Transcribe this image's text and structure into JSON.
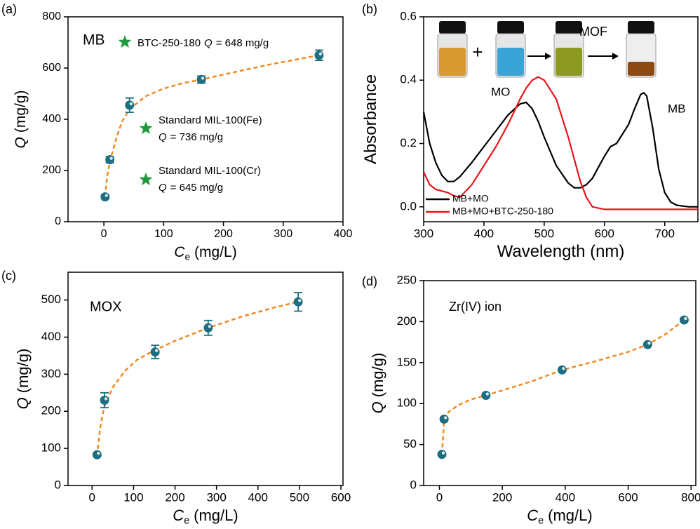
{
  "chart_data": [
    {
      "type": "scatter",
      "panel_label": "(a)",
      "annotation": "MB",
      "xlabel": {
        "symbol": "C",
        "subscript": "e",
        "unit": "(mg/L)"
      },
      "ylabel": {
        "symbol": "Q",
        "unit": "(mg/g)"
      },
      "xlim": [
        -60,
        400
      ],
      "ylim": [
        0,
        800
      ],
      "xticks": [
        0,
        100,
        200,
        300,
        400
      ],
      "yticks": [
        0,
        200,
        400,
        600,
        800
      ],
      "points": {
        "color": "#1c6e80",
        "x": [
          2,
          10,
          43,
          163,
          360
        ],
        "values": [
          97,
          242,
          455,
          555,
          650
        ],
        "errors": [
          8,
          12,
          28,
          14,
          20
        ]
      },
      "fit": {
        "color": "#f08a24",
        "x": [
          2,
          5,
          10,
          20,
          30,
          43,
          70,
          100,
          130,
          163,
          220,
          280,
          360
        ],
        "values": [
          97,
          170,
          235,
          320,
          390,
          440,
          490,
          520,
          540,
          555,
          585,
          615,
          650
        ]
      },
      "stars": [
        {
          "color": "#1f9a3c",
          "lines": [
            [
              {
                "text": "BTC-250-180"
              },
              {
                "text": "Q",
                "italic": true
              },
              {
                "text": "= 648 mg/g"
              }
            ]
          ]
        },
        {
          "color": "#1f9a3c",
          "lines": [
            [
              {
                "text": "Standard MIL-100(Fe)"
              }
            ],
            [
              {
                "text": "Q",
                "italic": true
              },
              {
                "text": "= 736 mg/g"
              }
            ]
          ]
        },
        {
          "color": "#1f9a3c",
          "lines": [
            [
              {
                "text": "Standard MIL-100(Cr)"
              }
            ],
            [
              {
                "text": "Q",
                "italic": true
              },
              {
                "text": "= 645 mg/g"
              }
            ]
          ]
        }
      ]
    },
    {
      "type": "line",
      "panel_label": "(b)",
      "xlabel": {
        "text": "Wavelength (nm)"
      },
      "ylabel": {
        "text": "Absorbance"
      },
      "xlim": [
        300,
        755
      ],
      "ylim": [
        -0.047,
        0.6
      ],
      "xticks": [
        300,
        400,
        500,
        600,
        700
      ],
      "yticks": [
        {
          "value": 0,
          "label": "0.0"
        },
        {
          "value": 0.2,
          "label": "0.2"
        },
        {
          "value": 0.4,
          "label": "0.4"
        },
        {
          "value": 0.6,
          "label": "0.6"
        }
      ],
      "legend": "lower left",
      "annotations": [
        "MO",
        "MB"
      ],
      "inset_labels": [
        "+",
        "MOF"
      ],
      "x": [
        300,
        310,
        320,
        330,
        340,
        350,
        360,
        380,
        400,
        420,
        440,
        460,
        470,
        480,
        490,
        500,
        520,
        540,
        550,
        560,
        570,
        580,
        600,
        610,
        620,
        640,
        650,
        660,
        665,
        670,
        680,
        690,
        700,
        710,
        720,
        740,
        755
      ],
      "series": [
        {
          "name": "MB+MO",
          "color": "#000000",
          "values": [
            0.3,
            0.2,
            0.14,
            0.1,
            0.08,
            0.08,
            0.095,
            0.14,
            0.19,
            0.24,
            0.29,
            0.325,
            0.33,
            0.31,
            0.27,
            0.22,
            0.13,
            0.075,
            0.06,
            0.06,
            0.07,
            0.09,
            0.16,
            0.19,
            0.2,
            0.26,
            0.31,
            0.355,
            0.36,
            0.35,
            0.25,
            0.12,
            0.045,
            0.015,
            0.005,
            0.0,
            0.0
          ]
        },
        {
          "name": "MB+MO+BTC-250-180",
          "color": "#e8141a",
          "values": [
            0.11,
            0.07,
            0.055,
            0.05,
            0.045,
            0.035,
            0.03,
            0.07,
            0.13,
            0.19,
            0.26,
            0.34,
            0.375,
            0.4,
            0.41,
            0.4,
            0.34,
            0.22,
            0.15,
            0.08,
            0.03,
            0.0,
            -0.008,
            -0.008,
            -0.008,
            -0.008,
            -0.008,
            -0.008,
            -0.008,
            -0.008,
            -0.008,
            -0.008,
            -0.008,
            -0.008,
            -0.008,
            -0.008,
            -0.008
          ]
        }
      ]
    },
    {
      "type": "scatter",
      "panel_label": "(c)",
      "annotation": "MOX",
      "xlabel": {
        "symbol": "C",
        "subscript": "e",
        "unit": "(mg/L)"
      },
      "ylabel": {
        "symbol": "Q",
        "unit": "(mg/g)"
      },
      "xlim": [
        -58,
        605
      ],
      "ylim": [
        0,
        575
      ],
      "xticks": [
        0,
        100,
        200,
        300,
        400,
        500,
        600
      ],
      "yticks": [
        0,
        100,
        200,
        300,
        400,
        500
      ],
      "points": {
        "color": "#1c6e80",
        "x": [
          12,
          30,
          152,
          280,
          497
        ],
        "values": [
          83,
          230,
          360,
          425,
          495
        ],
        "errors": [
          5,
          20,
          18,
          20,
          25
        ]
      },
      "fit": {
        "color": "#f08a24",
        "x": [
          12,
          20,
          30,
          50,
          80,
          110,
          152,
          200,
          280,
          360,
          440,
          497
        ],
        "values": [
          80,
          160,
          215,
          265,
          310,
          340,
          365,
          390,
          425,
          455,
          480,
          495
        ]
      }
    },
    {
      "type": "scatter",
      "panel_label": "(d)",
      "annotation": "Zr(IV) ion",
      "xlabel": {
        "symbol": "C",
        "subscript": "e",
        "unit": "(mg/L)"
      },
      "ylabel": {
        "symbol": "Q",
        "unit": "(mg/g)"
      },
      "xlim": [
        -50,
        815
      ],
      "ylim": [
        0,
        250
      ],
      "xticks": [
        0,
        200,
        400,
        600,
        800
      ],
      "yticks": [
        0,
        50,
        100,
        150,
        200,
        250
      ],
      "points": {
        "color": "#1c6e80",
        "x": [
          8,
          15,
          148,
          390,
          662,
          778
        ],
        "values": [
          38,
          81,
          110,
          141,
          172,
          202
        ]
      },
      "fit": {
        "color": "#f08a24",
        "x": [
          8,
          12,
          15,
          30,
          60,
          100,
          148,
          200,
          300,
          390,
          500,
          600,
          662,
          720,
          778
        ],
        "values": [
          38,
          60,
          81,
          90,
          98,
          105,
          110,
          116,
          128,
          141,
          152,
          163,
          172,
          185,
          202
        ]
      }
    }
  ]
}
